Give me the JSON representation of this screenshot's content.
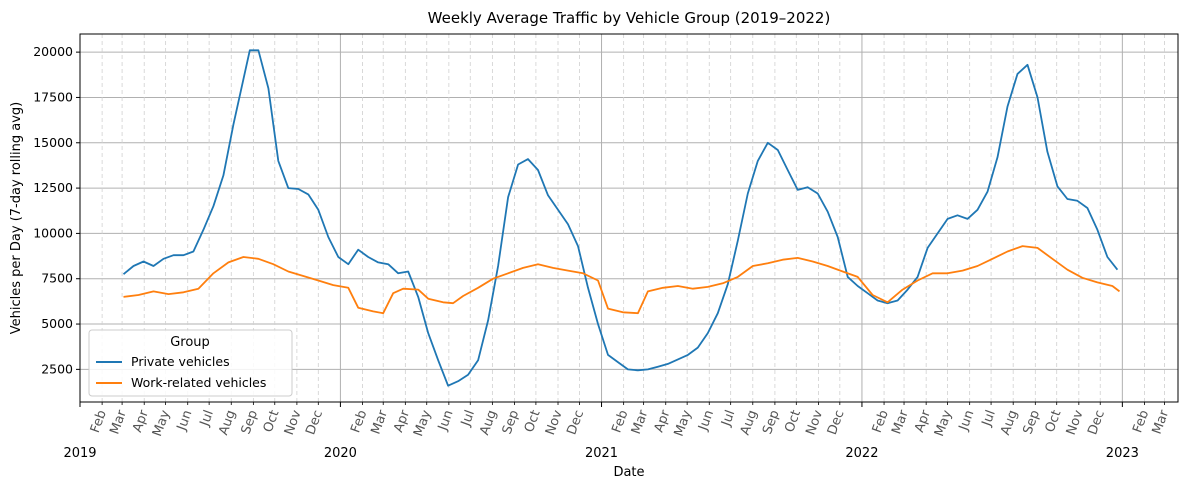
{
  "chart_data": {
    "type": "line",
    "title": "Weekly Average Traffic by Vehicle Group (2019–2022)",
    "xlabel": "Date",
    "ylabel": "Vehicles per Day (7-day rolling avg)",
    "xlim": [
      "2019-01-01",
      "2023-03-20"
    ],
    "ylim": [
      700,
      21000
    ],
    "y_ticks": [
      2500,
      5000,
      7500,
      10000,
      12500,
      15000,
      17500,
      20000
    ],
    "month_tick_labels": [
      "Feb",
      "Mar",
      "Apr",
      "May",
      "Jun",
      "Jul",
      "Aug",
      "Sep",
      "Oct",
      "Nov",
      "Dec"
    ],
    "year_tick_labels": [
      "2019",
      "2020",
      "2021",
      "2022",
      "2023"
    ],
    "after_last_year_labels": [
      "Feb",
      "Mar"
    ],
    "grid": true,
    "legend": {
      "title": "Group",
      "position": "lower-left"
    },
    "series": [
      {
        "name": "Private vehicles",
        "color": "#1f77b4",
        "points": [
          [
            "2019-03-03",
            7750
          ],
          [
            "2019-03-17",
            8200
          ],
          [
            "2019-03-31",
            8450
          ],
          [
            "2019-04-14",
            8200
          ],
          [
            "2019-04-28",
            8600
          ],
          [
            "2019-05-12",
            8800
          ],
          [
            "2019-05-26",
            8800
          ],
          [
            "2019-06-09",
            9000
          ],
          [
            "2019-06-23",
            10200
          ],
          [
            "2019-07-07",
            11500
          ],
          [
            "2019-07-21",
            13200
          ],
          [
            "2019-08-04",
            16000
          ],
          [
            "2019-08-18",
            18500
          ],
          [
            "2019-08-27",
            20100
          ],
          [
            "2019-09-08",
            20100
          ],
          [
            "2019-09-22",
            18000
          ],
          [
            "2019-10-06",
            14000
          ],
          [
            "2019-10-20",
            12500
          ],
          [
            "2019-11-03",
            12450
          ],
          [
            "2019-11-17",
            12150
          ],
          [
            "2019-12-01",
            11300
          ],
          [
            "2019-12-15",
            9800
          ],
          [
            "2019-12-29",
            8700
          ],
          [
            "2020-01-12",
            8300
          ],
          [
            "2020-01-26",
            9100
          ],
          [
            "2020-02-09",
            8700
          ],
          [
            "2020-02-23",
            8400
          ],
          [
            "2020-03-08",
            8300
          ],
          [
            "2020-03-22",
            7800
          ],
          [
            "2020-04-05",
            7900
          ],
          [
            "2020-04-19",
            6500
          ],
          [
            "2020-05-03",
            4500
          ],
          [
            "2020-05-17",
            3000
          ],
          [
            "2020-05-31",
            1600
          ],
          [
            "2020-06-14",
            1850
          ],
          [
            "2020-06-28",
            2200
          ],
          [
            "2020-07-12",
            3000
          ],
          [
            "2020-07-26",
            5200
          ],
          [
            "2020-08-09",
            8200
          ],
          [
            "2020-08-23",
            12000
          ],
          [
            "2020-09-06",
            13800
          ],
          [
            "2020-09-20",
            14100
          ],
          [
            "2020-10-04",
            13500
          ],
          [
            "2020-10-18",
            12100
          ],
          [
            "2020-11-01",
            11300
          ],
          [
            "2020-11-15",
            10500
          ],
          [
            "2020-11-29",
            9300
          ],
          [
            "2020-12-13",
            7000
          ],
          [
            "2020-12-27",
            5000
          ],
          [
            "2021-01-10",
            3300
          ],
          [
            "2021-01-24",
            2900
          ],
          [
            "2021-02-07",
            2500
          ],
          [
            "2021-02-21",
            2450
          ],
          [
            "2021-03-07",
            2500
          ],
          [
            "2021-03-21",
            2650
          ],
          [
            "2021-04-04",
            2800
          ],
          [
            "2021-04-18",
            3050
          ],
          [
            "2021-05-02",
            3300
          ],
          [
            "2021-05-16",
            3700
          ],
          [
            "2021-05-30",
            4500
          ],
          [
            "2021-06-13",
            5600
          ],
          [
            "2021-06-27",
            7200
          ],
          [
            "2021-07-11",
            9600
          ],
          [
            "2021-07-25",
            12200
          ],
          [
            "2021-08-08",
            14000
          ],
          [
            "2021-08-22",
            15000
          ],
          [
            "2021-09-05",
            14600
          ],
          [
            "2021-09-19",
            13500
          ],
          [
            "2021-10-03",
            12400
          ],
          [
            "2021-10-17",
            12550
          ],
          [
            "2021-10-31",
            12200
          ],
          [
            "2021-11-14",
            11200
          ],
          [
            "2021-11-28",
            9800
          ],
          [
            "2021-12-12",
            7600
          ],
          [
            "2021-12-26",
            7100
          ],
          [
            "2022-01-09",
            6700
          ],
          [
            "2022-01-23",
            6300
          ],
          [
            "2022-02-06",
            6150
          ],
          [
            "2022-02-20",
            6300
          ],
          [
            "2022-03-06",
            6900
          ],
          [
            "2022-03-20",
            7600
          ],
          [
            "2022-04-03",
            9200
          ],
          [
            "2022-04-17",
            10000
          ],
          [
            "2022-05-01",
            10800
          ],
          [
            "2022-05-15",
            11000
          ],
          [
            "2022-05-29",
            10800
          ],
          [
            "2022-06-12",
            11300
          ],
          [
            "2022-06-26",
            12300
          ],
          [
            "2022-07-10",
            14200
          ],
          [
            "2022-07-24",
            17000
          ],
          [
            "2022-08-07",
            18800
          ],
          [
            "2022-08-21",
            19300
          ],
          [
            "2022-09-04",
            17500
          ],
          [
            "2022-09-18",
            14500
          ],
          [
            "2022-10-02",
            12600
          ],
          [
            "2022-10-16",
            11900
          ],
          [
            "2022-10-30",
            11800
          ],
          [
            "2022-11-13",
            11400
          ],
          [
            "2022-11-27",
            10200
          ],
          [
            "2022-12-11",
            8700
          ],
          [
            "2022-12-25",
            8000
          ]
        ]
      },
      {
        "name": "Work-related vehicles",
        "color": "#ff7f0e",
        "points": [
          [
            "2019-03-03",
            6500
          ],
          [
            "2019-03-24",
            6600
          ],
          [
            "2019-04-14",
            6800
          ],
          [
            "2019-05-05",
            6650
          ],
          [
            "2019-05-26",
            6750
          ],
          [
            "2019-06-16",
            6950
          ],
          [
            "2019-07-07",
            7800
          ],
          [
            "2019-07-28",
            8400
          ],
          [
            "2019-08-18",
            8700
          ],
          [
            "2019-09-08",
            8600
          ],
          [
            "2019-09-29",
            8300
          ],
          [
            "2019-10-20",
            7900
          ],
          [
            "2019-11-10",
            7650
          ],
          [
            "2019-12-01",
            7400
          ],
          [
            "2019-12-22",
            7150
          ],
          [
            "2020-01-12",
            7000
          ],
          [
            "2020-01-26",
            5900
          ],
          [
            "2020-02-16",
            5700
          ],
          [
            "2020-03-01",
            5600
          ],
          [
            "2020-03-15",
            6700
          ],
          [
            "2020-03-29",
            6950
          ],
          [
            "2020-04-19",
            6900
          ],
          [
            "2020-05-03",
            6400
          ],
          [
            "2020-05-24",
            6200
          ],
          [
            "2020-06-07",
            6150
          ],
          [
            "2020-06-21",
            6550
          ],
          [
            "2020-07-12",
            7000
          ],
          [
            "2020-08-02",
            7500
          ],
          [
            "2020-08-23",
            7800
          ],
          [
            "2020-09-13",
            8100
          ],
          [
            "2020-10-04",
            8300
          ],
          [
            "2020-10-25",
            8100
          ],
          [
            "2020-11-15",
            7950
          ],
          [
            "2020-12-06",
            7800
          ],
          [
            "2020-12-27",
            7400
          ],
          [
            "2021-01-10",
            5850
          ],
          [
            "2021-01-31",
            5650
          ],
          [
            "2021-02-21",
            5600
          ],
          [
            "2021-03-07",
            6800
          ],
          [
            "2021-03-28",
            7000
          ],
          [
            "2021-04-18",
            7100
          ],
          [
            "2021-05-09",
            6950
          ],
          [
            "2021-05-30",
            7050
          ],
          [
            "2021-06-20",
            7250
          ],
          [
            "2021-07-11",
            7600
          ],
          [
            "2021-08-01",
            8200
          ],
          [
            "2021-08-22",
            8350
          ],
          [
            "2021-09-12",
            8550
          ],
          [
            "2021-10-03",
            8650
          ],
          [
            "2021-10-24",
            8450
          ],
          [
            "2021-11-14",
            8200
          ],
          [
            "2021-12-05",
            7900
          ],
          [
            "2021-12-26",
            7600
          ],
          [
            "2022-01-16",
            6600
          ],
          [
            "2022-02-06",
            6200
          ],
          [
            "2022-02-27",
            6900
          ],
          [
            "2022-03-20",
            7400
          ],
          [
            "2022-04-10",
            7800
          ],
          [
            "2022-05-01",
            7800
          ],
          [
            "2022-05-22",
            7950
          ],
          [
            "2022-06-12",
            8200
          ],
          [
            "2022-07-03",
            8600
          ],
          [
            "2022-07-24",
            9000
          ],
          [
            "2022-08-14",
            9300
          ],
          [
            "2022-09-04",
            9200
          ],
          [
            "2022-09-25",
            8600
          ],
          [
            "2022-10-16",
            8000
          ],
          [
            "2022-11-06",
            7550
          ],
          [
            "2022-11-27",
            7300
          ],
          [
            "2022-12-18",
            7100
          ],
          [
            "2022-12-28",
            6800
          ]
        ]
      }
    ]
  }
}
